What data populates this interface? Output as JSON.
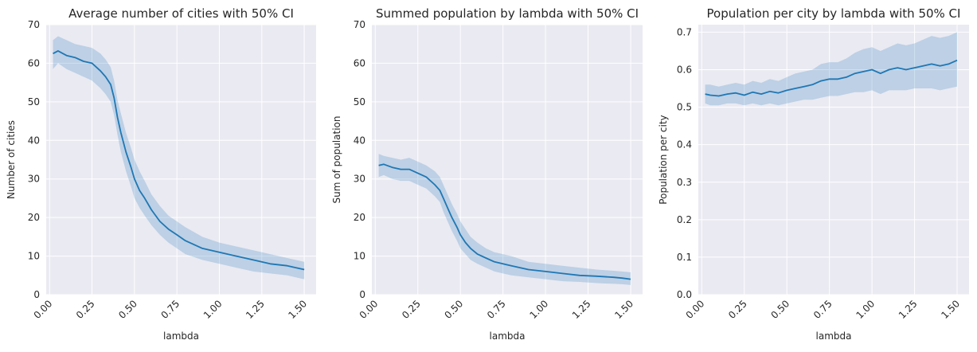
{
  "chart_data": [
    {
      "type": "line",
      "title": "Average number of cities with 50% CI",
      "xlabel": "lambda",
      "ylabel": "Number of cities",
      "xlim": [
        -0.02,
        1.57
      ],
      "ylim": [
        0,
        70
      ],
      "xticks": [
        "0.00",
        "0.25",
        "0.50",
        "0.75",
        "1.00",
        "1.25",
        "1.50"
      ],
      "yticks": [
        "0",
        "10",
        "20",
        "30",
        "40",
        "50",
        "60",
        "70"
      ],
      "grid": true,
      "ci": "50%",
      "color": "#1f77b4",
      "series": [
        {
          "x": [
            0.02,
            0.05,
            0.1,
            0.15,
            0.2,
            0.25,
            0.3,
            0.33,
            0.36,
            0.38,
            0.4,
            0.42,
            0.45,
            0.48,
            0.5,
            0.53,
            0.56,
            0.6,
            0.65,
            0.7,
            0.75,
            0.8,
            0.9,
            1.0,
            1.1,
            1.2,
            1.3,
            1.4,
            1.45,
            1.5
          ],
          "y": [
            62.5,
            63.2,
            62.0,
            61.5,
            60.5,
            60.0,
            58.0,
            56.5,
            54.5,
            51.0,
            46.0,
            42.0,
            37.0,
            33.0,
            30.0,
            27.0,
            25.0,
            22.0,
            19.0,
            17.0,
            15.5,
            14.0,
            12.0,
            11.0,
            10.0,
            9.0,
            8.0,
            7.5,
            7.0,
            6.5
          ],
          "lower": [
            58.5,
            60.0,
            58.5,
            57.5,
            56.5,
            55.5,
            53.5,
            52.0,
            50.0,
            46.5,
            41.5,
            37.0,
            32.0,
            28.0,
            25.0,
            22.5,
            20.5,
            18.0,
            15.5,
            13.5,
            12.0,
            10.5,
            9.0,
            8.0,
            7.0,
            6.0,
            5.5,
            5.0,
            4.5,
            4.0
          ],
          "upper": [
            66.0,
            67.0,
            66.0,
            65.0,
            64.5,
            64.0,
            62.5,
            61.0,
            59.0,
            55.5,
            50.5,
            47.0,
            42.0,
            38.0,
            35.0,
            32.0,
            29.5,
            26.0,
            23.0,
            20.5,
            19.0,
            17.5,
            15.0,
            13.5,
            12.5,
            11.5,
            10.5,
            9.5,
            9.0,
            8.5
          ]
        }
      ]
    },
    {
      "type": "line",
      "title": "Summed population by lambda with 50% CI",
      "xlabel": "lambda",
      "ylabel": "Sum of population",
      "xlim": [
        -0.02,
        1.57
      ],
      "ylim": [
        0,
        70
      ],
      "xticks": [
        "0.00",
        "0.25",
        "0.50",
        "0.75",
        "1.00",
        "1.25",
        "1.50"
      ],
      "yticks": [
        "0",
        "10",
        "20",
        "30",
        "40",
        "50",
        "60",
        "70"
      ],
      "grid": true,
      "ci": "50%",
      "color": "#1f77b4",
      "series": [
        {
          "x": [
            0.02,
            0.05,
            0.1,
            0.15,
            0.2,
            0.25,
            0.3,
            0.35,
            0.38,
            0.4,
            0.43,
            0.45,
            0.48,
            0.5,
            0.53,
            0.56,
            0.6,
            0.65,
            0.7,
            0.75,
            0.8,
            0.9,
            1.0,
            1.1,
            1.2,
            1.3,
            1.4,
            1.45,
            1.5
          ],
          "y": [
            33.5,
            33.8,
            33.0,
            32.5,
            32.5,
            31.5,
            30.5,
            28.5,
            27.0,
            25.0,
            22.0,
            20.0,
            17.5,
            15.5,
            13.5,
            12.0,
            10.5,
            9.5,
            8.5,
            8.0,
            7.5,
            6.5,
            6.0,
            5.5,
            5.0,
            4.8,
            4.5,
            4.3,
            4.0
          ],
          "lower": [
            30.5,
            31.0,
            30.0,
            29.5,
            29.5,
            28.5,
            27.5,
            25.5,
            24.0,
            21.5,
            18.5,
            16.5,
            14.0,
            12.0,
            10.5,
            9.0,
            8.0,
            7.0,
            6.0,
            5.5,
            5.0,
            4.5,
            4.0,
            3.5,
            3.3,
            3.0,
            2.8,
            2.7,
            2.5
          ],
          "upper": [
            36.5,
            36.0,
            35.5,
            35.0,
            35.5,
            34.5,
            33.5,
            32.0,
            30.5,
            28.5,
            25.5,
            23.5,
            21.0,
            19.0,
            17.0,
            15.0,
            13.5,
            12.0,
            11.0,
            10.5,
            10.0,
            8.5,
            8.0,
            7.5,
            7.0,
            6.5,
            6.2,
            6.0,
            5.8
          ]
        }
      ]
    },
    {
      "type": "line",
      "title": "Population per city by lambda with 50% CI",
      "xlabel": "lambda",
      "ylabel": "Population per city",
      "xlim": [
        -0.02,
        1.57
      ],
      "ylim": [
        0,
        0.72
      ],
      "xticks": [
        "0.00",
        "0.25",
        "0.50",
        "0.75",
        "1.00",
        "1.25",
        "1.50"
      ],
      "yticks": [
        "0.0",
        "0.1",
        "0.2",
        "0.3",
        "0.4",
        "0.5",
        "0.6",
        "0.7"
      ],
      "grid": true,
      "ci": "50%",
      "color": "#1f77b4",
      "series": [
        {
          "x": [
            0.02,
            0.05,
            0.1,
            0.15,
            0.2,
            0.25,
            0.3,
            0.35,
            0.4,
            0.45,
            0.5,
            0.55,
            0.6,
            0.65,
            0.7,
            0.75,
            0.8,
            0.85,
            0.9,
            0.95,
            1.0,
            1.05,
            1.1,
            1.15,
            1.2,
            1.25,
            1.3,
            1.35,
            1.4,
            1.45,
            1.5
          ],
          "y": [
            0.535,
            0.532,
            0.53,
            0.535,
            0.538,
            0.532,
            0.54,
            0.535,
            0.542,
            0.538,
            0.545,
            0.55,
            0.555,
            0.56,
            0.57,
            0.575,
            0.575,
            0.58,
            0.59,
            0.595,
            0.6,
            0.59,
            0.6,
            0.605,
            0.6,
            0.605,
            0.61,
            0.615,
            0.61,
            0.615,
            0.625
          ],
          "lower": [
            0.51,
            0.505,
            0.505,
            0.51,
            0.51,
            0.505,
            0.51,
            0.505,
            0.51,
            0.505,
            0.51,
            0.515,
            0.52,
            0.52,
            0.525,
            0.53,
            0.53,
            0.535,
            0.54,
            0.54,
            0.545,
            0.535,
            0.545,
            0.545,
            0.545,
            0.55,
            0.55,
            0.55,
            0.545,
            0.55,
            0.555
          ],
          "upper": [
            0.56,
            0.56,
            0.555,
            0.56,
            0.565,
            0.56,
            0.57,
            0.565,
            0.575,
            0.57,
            0.58,
            0.59,
            0.595,
            0.6,
            0.615,
            0.62,
            0.62,
            0.63,
            0.645,
            0.655,
            0.66,
            0.65,
            0.66,
            0.67,
            0.665,
            0.67,
            0.68,
            0.69,
            0.685,
            0.69,
            0.7
          ]
        }
      ]
    }
  ]
}
